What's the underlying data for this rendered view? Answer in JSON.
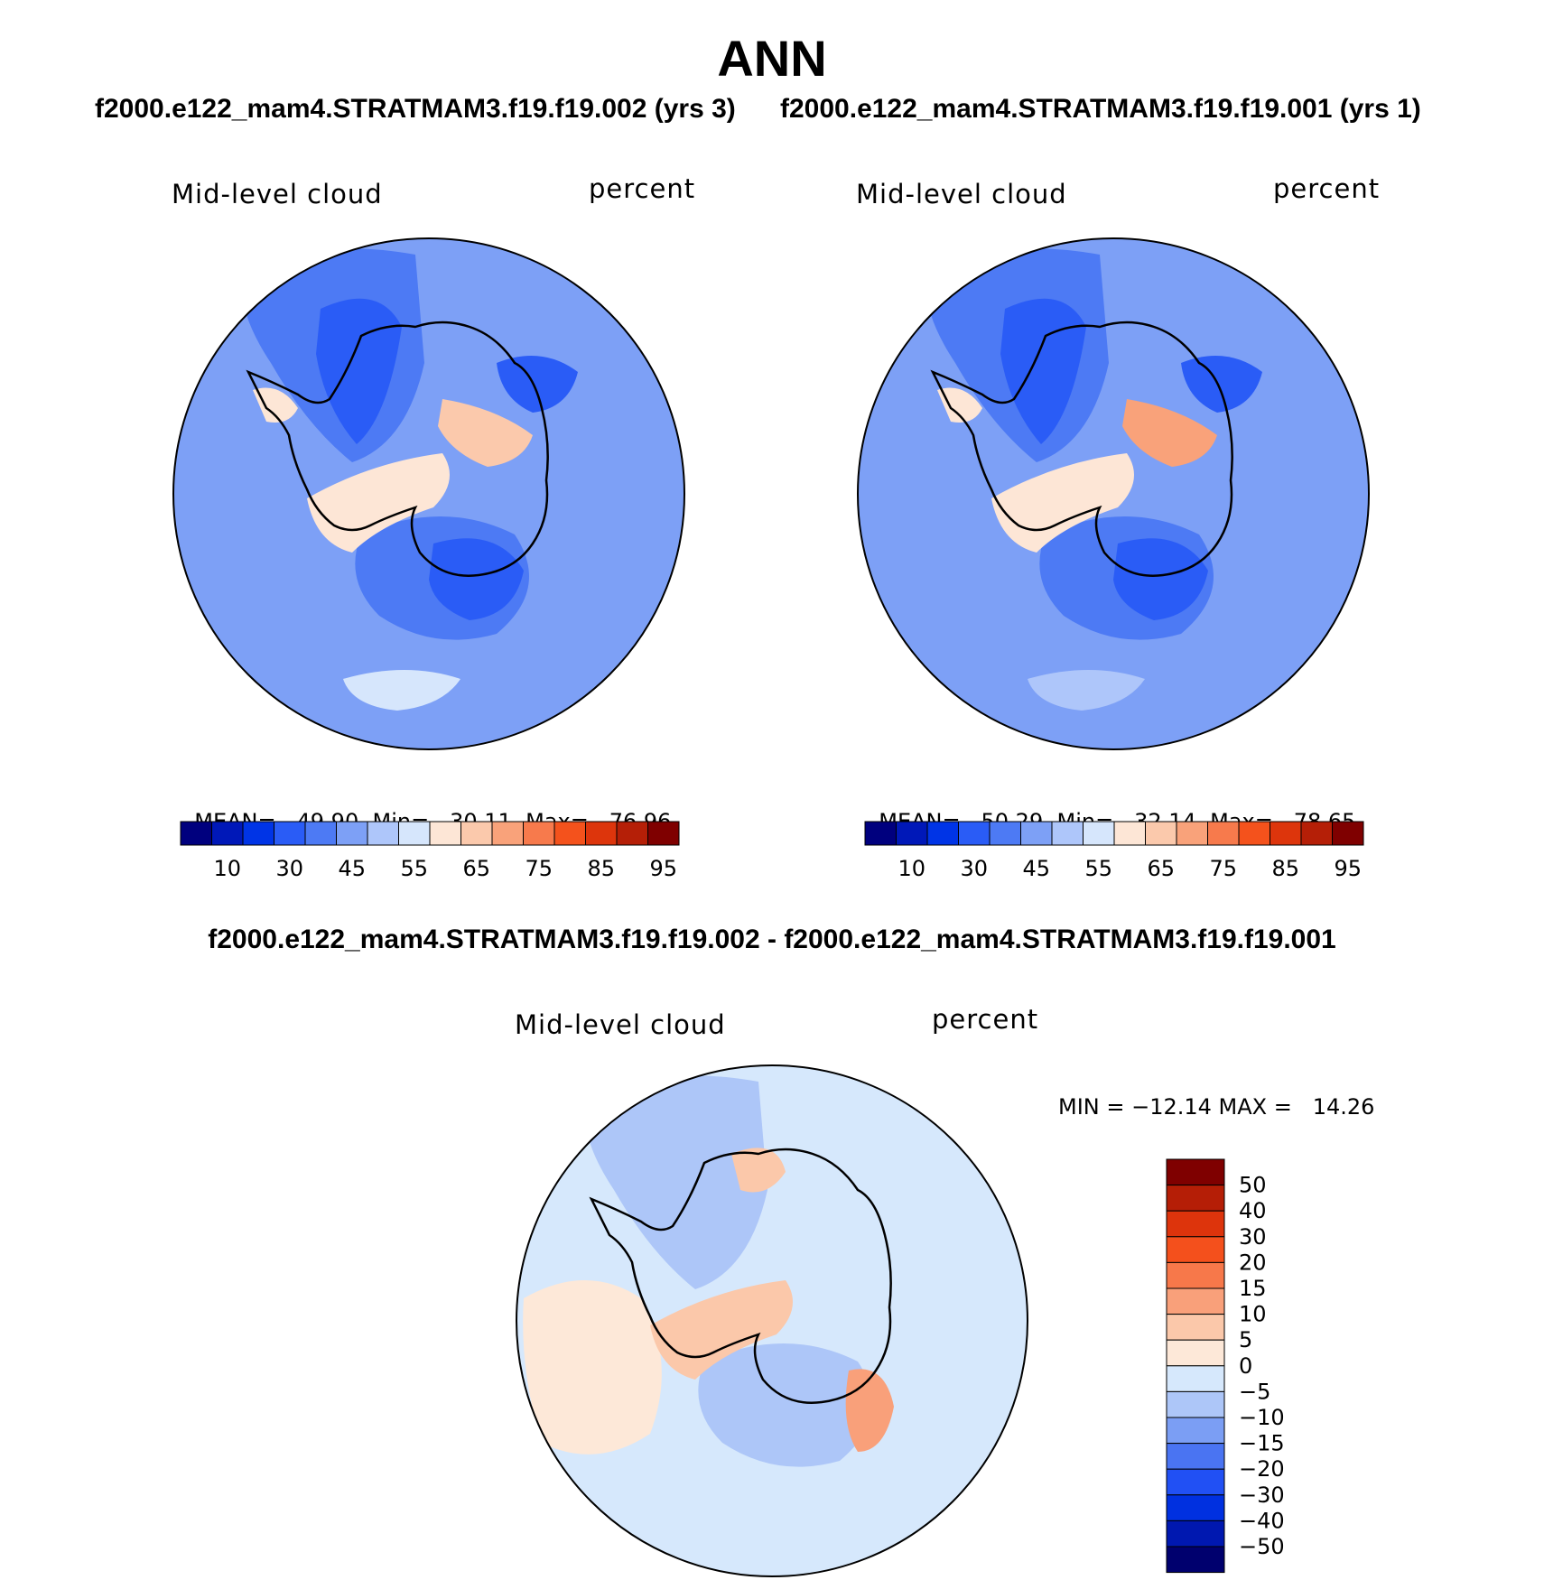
{
  "title": "ANN",
  "case_titles": {
    "left": "f2000.e122_mam4.STRATMAM3.f19.f19.002 (yrs 3)",
    "right": "f2000.e122_mam4.STRATMAM3.f19.f19.001 (yrs 1)"
  },
  "diff_title": "f2000.e122_mam4.STRATMAM3.f19.f19.002 - f2000.e122_mam4.STRATMAM3.f19.f19.001",
  "colors": {
    "main_scale": [
      "#00007e",
      "#0018b8",
      "#0034e6",
      "#2a5cf6",
      "#4d7af4",
      "#7da0f6",
      "#aec6fa",
      "#d6e6fc",
      "#fde6d6",
      "#fbc9ac",
      "#f9a27a",
      "#f77a4c",
      "#f4521c",
      "#dd350c",
      "#b51f07",
      "#7f0000"
    ],
    "diff_scale": [
      "#00006e",
      "#0018b0",
      "#0030e0",
      "#2150f4",
      "#4a74f2",
      "#7b9ef4",
      "#adc6f8",
      "#d6e8fc",
      "#fde8d8",
      "#fbc8aa",
      "#f9a07a",
      "#f7784a",
      "#f4501c",
      "#dd340c",
      "#b51e06",
      "#7f0000"
    ],
    "coast": "#000000"
  },
  "chart_data": [
    {
      "type": "polar-contour-map",
      "panel": "left",
      "label": "Mid-level cloud",
      "units": "percent",
      "stats": {
        "mean_label": "MEAN=",
        "mean": "49.90",
        "min_label": "Min=",
        "min": "30.11",
        "max_label": "Max=",
        "max": "76.96"
      },
      "colorbar_ticks": [
        "10",
        "30",
        "45",
        "55",
        "65",
        "75",
        "85",
        "95"
      ],
      "regions": [
        {
          "level": 5,
          "shape": "ocean"
        },
        {
          "level": 4,
          "shape": "nw-trough"
        },
        {
          "level": 3,
          "shape": "nw-core"
        },
        {
          "level": 4,
          "shape": "ross-sea"
        },
        {
          "level": 3,
          "shape": "ross-core"
        },
        {
          "level": 7,
          "shape": "south-band"
        },
        {
          "level": 8,
          "shape": "west-ais-ridge"
        },
        {
          "level": 9,
          "shape": "east-ais-peak"
        },
        {
          "level": 3,
          "shape": "ne-core"
        },
        {
          "level": 8,
          "shape": "peninsula"
        }
      ]
    },
    {
      "type": "polar-contour-map",
      "panel": "right",
      "label": "Mid-level cloud",
      "units": "percent",
      "stats": {
        "mean_label": "MEAN=",
        "mean": "50.29",
        "min_label": "Min=",
        "min": "32.14",
        "max_label": "Max=",
        "max": "78.65"
      },
      "colorbar_ticks": [
        "10",
        "30",
        "45",
        "55",
        "65",
        "75",
        "85",
        "95"
      ],
      "regions": [
        {
          "level": 5,
          "shape": "ocean"
        },
        {
          "level": 4,
          "shape": "nw-trough"
        },
        {
          "level": 3,
          "shape": "nw-core"
        },
        {
          "level": 4,
          "shape": "ross-sea"
        },
        {
          "level": 3,
          "shape": "ross-core"
        },
        {
          "level": 6,
          "shape": "south-band"
        },
        {
          "level": 8,
          "shape": "west-ais-ridge"
        },
        {
          "level": 10,
          "shape": "east-ais-peak"
        },
        {
          "level": 3,
          "shape": "ne-core"
        },
        {
          "level": 8,
          "shape": "peninsula"
        }
      ]
    },
    {
      "type": "polar-contour-map",
      "panel": "difference",
      "label": "Mid-level cloud",
      "units": "percent",
      "stats": {
        "text": "MIN = −12.14 MAX =   14.26",
        "min": "−12.14",
        "max": "14.26"
      },
      "colorbar_ticks": [
        "50",
        "40",
        "30",
        "20",
        "15",
        "10",
        "5",
        "0",
        "−5",
        "−10",
        "−15",
        "−20",
        "−30",
        "−40",
        "−50"
      ],
      "regions": [
        {
          "level": 7,
          "shape": "ocean"
        },
        {
          "level": 8,
          "shape": "west-warm"
        },
        {
          "level": 6,
          "shape": "nw-trough"
        },
        {
          "level": 6,
          "shape": "ross-sea"
        },
        {
          "level": 9,
          "shape": "west-ais-ridge"
        },
        {
          "level": 10,
          "shape": "sw-peak"
        },
        {
          "level": 9,
          "shape": "north-warm"
        }
      ]
    }
  ]
}
